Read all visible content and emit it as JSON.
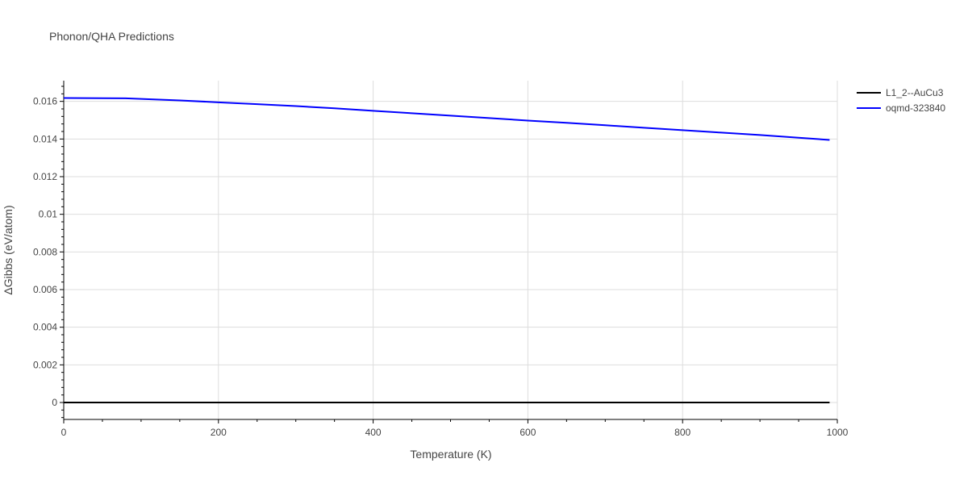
{
  "chart_data": {
    "type": "line",
    "title": "Phonon/QHA Predictions",
    "xlabel": "Temperature (K)",
    "ylabel": "ΔGibbs (eV/atom)",
    "xlim": [
      0,
      1000
    ],
    "ylim": [
      -0.0009,
      0.0171
    ],
    "x_ticks": [
      0,
      200,
      400,
      600,
      800,
      1000
    ],
    "x_tick_labels": [
      "0",
      "200",
      "400",
      "600",
      "800",
      "1000"
    ],
    "y_ticks": [
      0,
      0.002,
      0.004,
      0.006,
      0.008,
      0.01,
      0.012,
      0.014,
      0.016
    ],
    "y_tick_labels": [
      "0",
      "0.002",
      "0.004",
      "0.006",
      "0.008",
      "0.01",
      "0.012",
      "0.014",
      "0.016"
    ],
    "grid": true,
    "legend_position": "top-right",
    "series": [
      {
        "name": "L1_2--AuCu3",
        "color": "#000000",
        "x": [
          0,
          990
        ],
        "y": [
          0,
          0
        ]
      },
      {
        "name": "oqmd-323840",
        "color": "#0000ff",
        "x": [
          0,
          50,
          80,
          100,
          150,
          200,
          250,
          300,
          350,
          400,
          450,
          500,
          550,
          600,
          650,
          700,
          750,
          800,
          850,
          900,
          950,
          990
        ],
        "y": [
          0.01618,
          0.01617,
          0.01616,
          0.01613,
          0.01605,
          0.01595,
          0.01585,
          0.01575,
          0.01563,
          0.0155,
          0.01537,
          0.01524,
          0.01511,
          0.01498,
          0.01486,
          0.01473,
          0.0146,
          0.01447,
          0.01434,
          0.01421,
          0.01407,
          0.01395
        ]
      }
    ]
  }
}
